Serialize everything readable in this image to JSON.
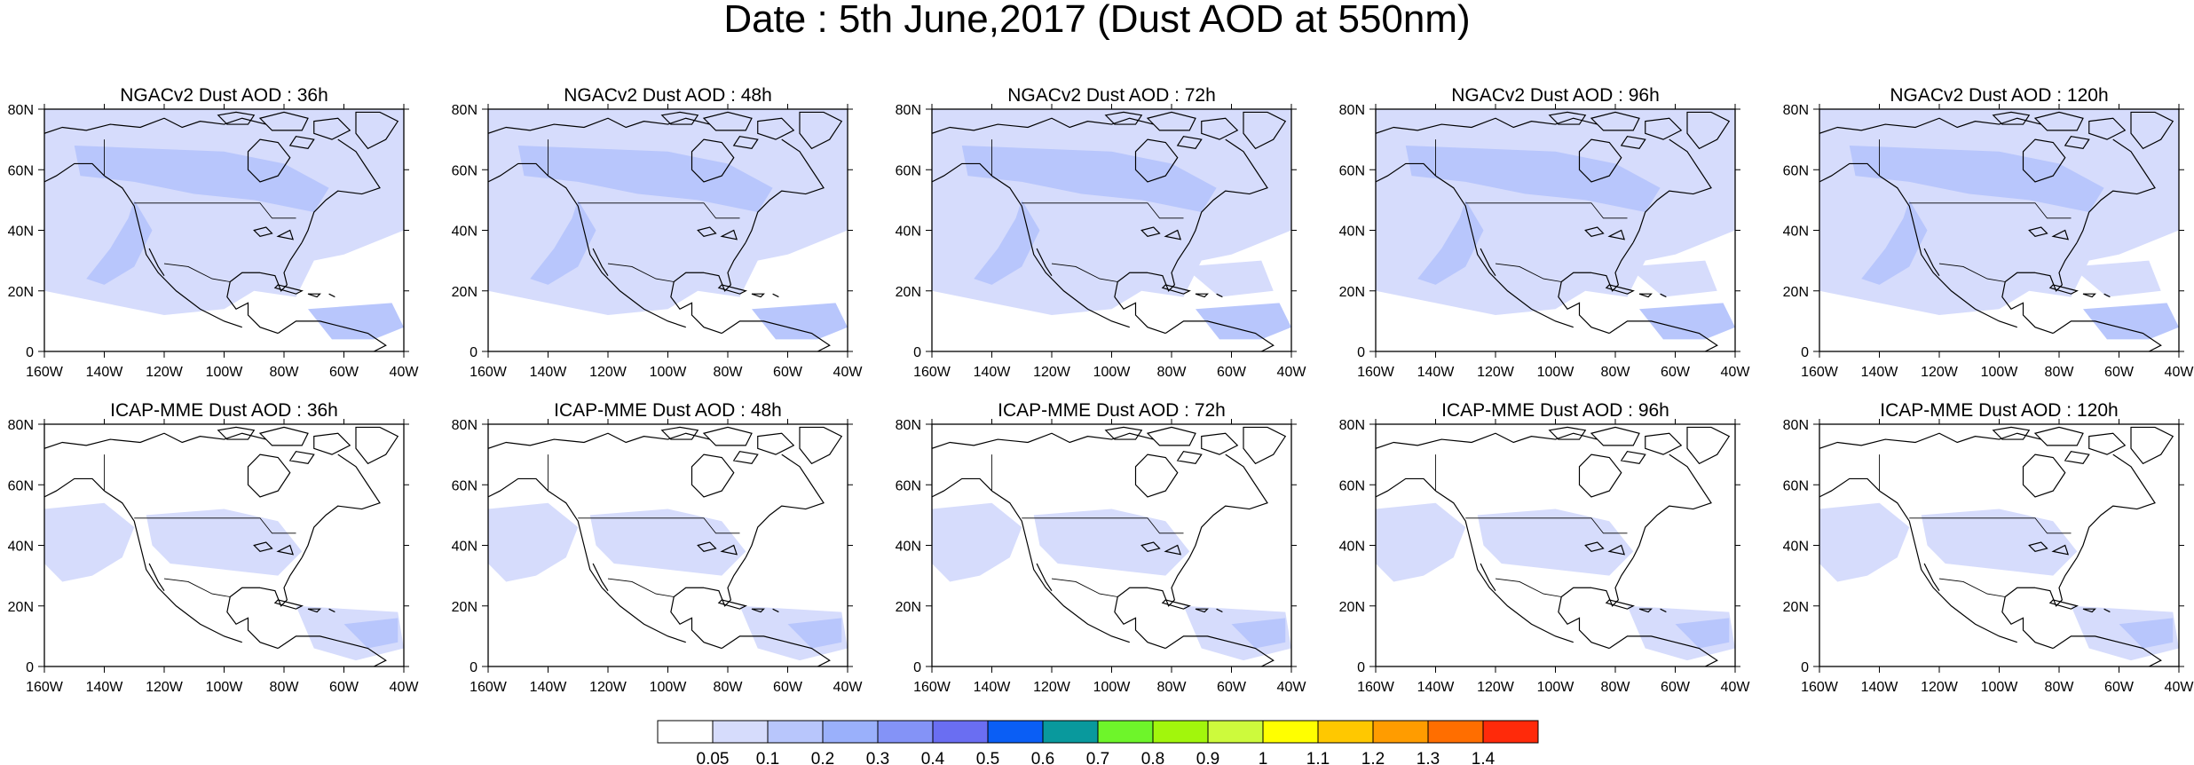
{
  "title": "Date : 5th June,2017 (Dust AOD at 550nm)",
  "x_ticks": [
    "160W",
    "140W",
    "120W",
    "100W",
    "80W",
    "60W",
    "40W"
  ],
  "y_ticks": [
    "80N",
    "60N",
    "40N",
    "20N",
    "0"
  ],
  "panels": [
    {
      "title": "NGACv2 Dust AOD : 36h",
      "model": "NGACv2",
      "lead": "36h"
    },
    {
      "title": "NGACv2 Dust AOD : 48h",
      "model": "NGACv2",
      "lead": "48h"
    },
    {
      "title": "NGACv2 Dust AOD : 72h",
      "model": "NGACv2",
      "lead": "72h"
    },
    {
      "title": "NGACv2 Dust AOD : 96h",
      "model": "NGACv2",
      "lead": "96h"
    },
    {
      "title": "NGACv2 Dust AOD : 120h",
      "model": "NGACv2",
      "lead": "120h"
    },
    {
      "title": "ICAP-MME Dust AOD : 36h",
      "model": "ICAP-MME",
      "lead": "36h"
    },
    {
      "title": "ICAP-MME Dust AOD : 48h",
      "model": "ICAP-MME",
      "lead": "48h"
    },
    {
      "title": "ICAP-MME Dust AOD : 72h",
      "model": "ICAP-MME",
      "lead": "72h"
    },
    {
      "title": "ICAP-MME Dust AOD : 96h",
      "model": "ICAP-MME",
      "lead": "96h"
    },
    {
      "title": "ICAP-MME Dust AOD : 120h",
      "model": "ICAP-MME",
      "lead": "120h"
    }
  ],
  "colorbar": {
    "labels": [
      "0.05",
      "0.1",
      "0.2",
      "0.3",
      "0.4",
      "0.5",
      "0.6",
      "0.7",
      "0.8",
      "0.9",
      "1",
      "1.1",
      "1.2",
      "1.3",
      "1.4"
    ],
    "colors": [
      "#ffffff",
      "#d6dcfc",
      "#b8c6fc",
      "#9ab0fb",
      "#8493f7",
      "#6a6ef2",
      "#0a5ef5",
      "#09999d",
      "#6ef52a",
      "#a2f60c",
      "#cdfa3c",
      "#ffff00",
      "#ffc800",
      "#ff9c00",
      "#ff6e00",
      "#ff2a0a"
    ]
  }
}
